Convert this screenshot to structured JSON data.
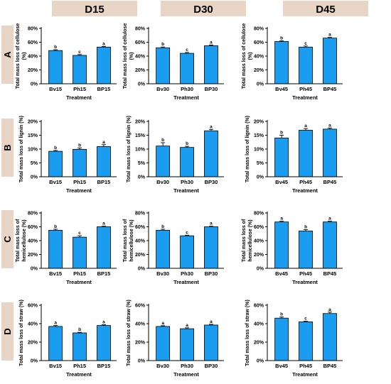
{
  "column_labels": [
    "D15",
    "D30",
    "D45"
  ],
  "row_labels": [
    "A",
    "B",
    "C",
    "D"
  ],
  "colors": {
    "bar": "#1a9cf0",
    "header_bg": "#e8d5c6",
    "axis": "#000000"
  },
  "chart_data": [
    {
      "type": "bar",
      "row": "A",
      "column": "D15",
      "title": "",
      "xlabel": "Treatment",
      "ylabel_lines": [
        "Total mass loss of cellulose",
        "(%)"
      ],
      "categories": [
        "Bv15",
        "Ph15",
        "BP15"
      ],
      "values": [
        48,
        41,
        53
      ],
      "errors": [
        1.2,
        1.2,
        1.0
      ],
      "sig_letters": [
        "b",
        "c",
        "a"
      ],
      "ylim": [
        0,
        80
      ],
      "yticks": [
        "0%",
        "20%",
        "40%",
        "60%",
        "80%"
      ]
    },
    {
      "type": "bar",
      "row": "A",
      "column": "D30",
      "title": "",
      "xlabel": "Treatment",
      "ylabel_lines": [
        "Total mass loss of cellulose",
        "(%)"
      ],
      "categories": [
        "Bv30",
        "Ph30",
        "BP30"
      ],
      "values": [
        52,
        44,
        55
      ],
      "errors": [
        1.2,
        1.2,
        1.0
      ],
      "sig_letters": [
        "b",
        "c",
        "a"
      ],
      "ylim": [
        0,
        80
      ],
      "yticks": [
        "0%",
        "20%",
        "40%",
        "60%",
        "80%"
      ]
    },
    {
      "type": "bar",
      "row": "A",
      "column": "D45",
      "title": "",
      "xlabel": "Treatment",
      "ylabel_lines": [
        "Total mass loss of cellulose",
        "(%)"
      ],
      "categories": [
        "Bv45",
        "Ph45",
        "BP45"
      ],
      "values": [
        61,
        53,
        66
      ],
      "errors": [
        1.2,
        1.5,
        1.0
      ],
      "sig_letters": [
        "b",
        "c",
        "a"
      ],
      "ylim": [
        0,
        80
      ],
      "yticks": [
        "0%",
        "20%",
        "40%",
        "60%",
        "80%"
      ]
    },
    {
      "type": "bar",
      "row": "B",
      "column": "D15",
      "title": "",
      "xlabel": "Treatment",
      "ylabel_lines": [
        "Total mass loss of lignin (%)"
      ],
      "categories": [
        "Bv15",
        "Ph15",
        "BP15"
      ],
      "values": [
        9.2,
        9.9,
        10.9
      ],
      "errors": [
        0.3,
        0.5,
        0.7
      ],
      "sig_letters": [
        "b",
        "b",
        "a"
      ],
      "ylim": [
        0,
        20
      ],
      "yticks": [
        "0%",
        "5%",
        "10%",
        "15%",
        "20%"
      ]
    },
    {
      "type": "bar",
      "row": "B",
      "column": "D30",
      "title": "",
      "xlabel": "Treatment",
      "ylabel_lines": [
        "Total mass loss of lignin (%)"
      ],
      "categories": [
        "Bv30",
        "Ph30",
        "BP30"
      ],
      "values": [
        11.1,
        10.6,
        16.6
      ],
      "errors": [
        1.2,
        0.4,
        0.5
      ],
      "sig_letters": [
        "b",
        "b",
        "a"
      ],
      "ylim": [
        0,
        20
      ],
      "yticks": [
        "0%",
        "5%",
        "10%",
        "15%",
        "20%"
      ]
    },
    {
      "type": "bar",
      "row": "B",
      "column": "D45",
      "title": "",
      "xlabel": "Treatment",
      "ylabel_lines": [
        "Total mass loss of lignin (%)"
      ],
      "categories": [
        "Bv45",
        "Ph45",
        "BP45"
      ],
      "values": [
        14,
        16.8,
        17.2
      ],
      "errors": [
        1.0,
        0.6,
        0.4
      ],
      "sig_letters": [
        "b",
        "a",
        "a"
      ],
      "ylim": [
        0,
        20
      ],
      "yticks": [
        "0%",
        "5%",
        "10%",
        "15%",
        "20%"
      ]
    },
    {
      "type": "bar",
      "row": "C",
      "column": "D15",
      "title": "",
      "xlabel": "Treatment",
      "ylabel_lines": [
        "Total mass loss of",
        "hemicellulose (%)"
      ],
      "categories": [
        "Bv15",
        "Ph15",
        "BP15"
      ],
      "values": [
        55,
        45,
        60
      ],
      "errors": [
        1.5,
        2.0,
        0.8
      ],
      "sig_letters": [
        "b",
        "c",
        "a"
      ],
      "ylim": [
        0,
        80
      ],
      "yticks": [
        "0%",
        "20%",
        "40%",
        "60%",
        "80%"
      ]
    },
    {
      "type": "bar",
      "row": "C",
      "column": "D30",
      "title": "",
      "xlabel": "Treatment",
      "ylabel_lines": [
        "Total mass loss of",
        "hemicellulose (%)"
      ],
      "categories": [
        "Bv30",
        "Ph30",
        "BP30"
      ],
      "values": [
        55,
        47,
        60
      ],
      "errors": [
        1.5,
        0.8,
        0.8
      ],
      "sig_letters": [
        "b",
        "c",
        "a"
      ],
      "ylim": [
        0,
        80
      ],
      "yticks": [
        "0%",
        "20%",
        "40%",
        "60%",
        "80%"
      ]
    },
    {
      "type": "bar",
      "row": "C",
      "column": "D45",
      "title": "",
      "xlabel": "Treatment",
      "ylabel_lines": [
        "Total mass loss of",
        "hemicellulose (%)"
      ],
      "categories": [
        "Bv45",
        "Ph45",
        "BP45"
      ],
      "values": [
        67,
        54,
        67
      ],
      "errors": [
        1.0,
        2.0,
        1.0
      ],
      "sig_letters": [
        "a",
        "b",
        "a"
      ],
      "ylim": [
        0,
        80
      ],
      "yticks": [
        "0%",
        "20%",
        "40%",
        "60%",
        "80%"
      ]
    },
    {
      "type": "bar",
      "row": "D",
      "column": "D15",
      "title": "",
      "xlabel": "Treatment",
      "ylabel_lines": [
        "Total mass loss of straw (%)"
      ],
      "categories": [
        "Bv15",
        "Ph15",
        "BP15"
      ],
      "values": [
        37,
        30,
        38
      ],
      "errors": [
        1.0,
        0.6,
        0.8
      ],
      "sig_letters": [
        "a",
        "b",
        "a"
      ],
      "ylim": [
        0,
        60
      ],
      "yticks": [
        "0%",
        "20%",
        "40%",
        "60%"
      ]
    },
    {
      "type": "bar",
      "row": "D",
      "column": "D30",
      "title": "",
      "xlabel": "Treatment",
      "ylabel_lines": [
        "Total mass loss of straw (%)"
      ],
      "categories": [
        "Bv30",
        "Ph30",
        "BP30"
      ],
      "values": [
        37,
        34.5,
        38.5
      ],
      "errors": [
        0.8,
        1.0,
        0.8
      ],
      "sig_letters": [
        "a",
        "a",
        "a"
      ],
      "ylim": [
        0,
        60
      ],
      "yticks": [
        "0%",
        "20%",
        "40%",
        "60%"
      ]
    },
    {
      "type": "bar",
      "row": "D",
      "column": "D45",
      "title": "",
      "xlabel": "Treatment",
      "ylabel_lines": [
        "Total mass loss of straw (%)"
      ],
      "categories": [
        "Bv45",
        "Ph45",
        "BP45"
      ],
      "values": [
        46,
        42,
        51
      ],
      "errors": [
        1.2,
        0.6,
        1.5
      ],
      "sig_letters": [
        "b",
        "c",
        "a"
      ],
      "ylim": [
        0,
        60
      ],
      "yticks": [
        "0%",
        "20%",
        "40%",
        "60%"
      ]
    }
  ]
}
